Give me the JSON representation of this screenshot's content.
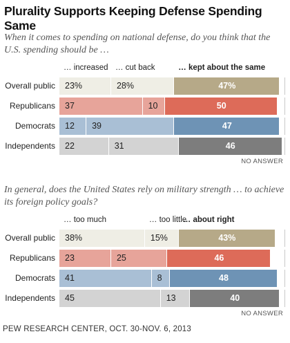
{
  "title": "Plurality Supports Keeping Defense Spending Same",
  "footer": "PEW RESEARCH CENTER, OCT. 30-NOV. 6, 2013",
  "chart_data": [
    {
      "type": "bar",
      "stacked": true,
      "orientation": "horizontal",
      "question": "When it comes to spending on national defense, do you think that the U.S. spending should be …",
      "categories": [
        "Overall public",
        "Republicans",
        "Democrats",
        "Independents"
      ],
      "series": [
        {
          "name": "… increased",
          "values": [
            23,
            37,
            12,
            22
          ],
          "labels": [
            "23%",
            "37",
            "12",
            "22"
          ]
        },
        {
          "name": "… cut back",
          "values": [
            28,
            10,
            39,
            31
          ],
          "labels": [
            "28%",
            "10",
            "39",
            "31"
          ]
        },
        {
          "name": "… kept about the same",
          "values": [
            47,
            50,
            47,
            46
          ],
          "labels": [
            "47%",
            "50",
            "47",
            "46"
          ]
        }
      ],
      "note": "NO ANSWER",
      "colors": {
        "Overall public": [
          "#efeee5",
          "#efeee5",
          "#b6a988"
        ],
        "Republicans": [
          "#e7a49a",
          "#e7a49a",
          "#dd6b59"
        ],
        "Democrats": [
          "#a9bfd5",
          "#a9bfd5",
          "#6e93b5"
        ],
        "Independents": [
          "#d3d3d3",
          "#d3d3d3",
          "#7d7d7d"
        ]
      }
    },
    {
      "type": "bar",
      "stacked": true,
      "orientation": "horizontal",
      "question": "In general, does the United States rely on military strength … to achieve its foreign policy goals?",
      "categories": [
        "Overall public",
        "Republicans",
        "Democrats",
        "Independents"
      ],
      "series": [
        {
          "name": "… too much",
          "values": [
            38,
            23,
            41,
            45
          ],
          "labels": [
            "38%",
            "23",
            "41",
            "45"
          ]
        },
        {
          "name": "… too little",
          "values": [
            15,
            25,
            8,
            13
          ],
          "labels": [
            "15%",
            "25",
            "8",
            "13"
          ]
        },
        {
          "name": "… about right",
          "values": [
            43,
            46,
            48,
            40
          ],
          "labels": [
            "43%",
            "46",
            "48",
            "40"
          ]
        }
      ],
      "note": "NO ANSWER",
      "colors": {
        "Overall public": [
          "#efeee5",
          "#efeee5",
          "#b6a988"
        ],
        "Republicans": [
          "#e7a49a",
          "#e7a49a",
          "#dd6b59"
        ],
        "Democrats": [
          "#a9bfd5",
          "#a9bfd5",
          "#6e93b5"
        ],
        "Independents": [
          "#d3d3d3",
          "#d3d3d3",
          "#7d7d7d"
        ]
      }
    }
  ]
}
